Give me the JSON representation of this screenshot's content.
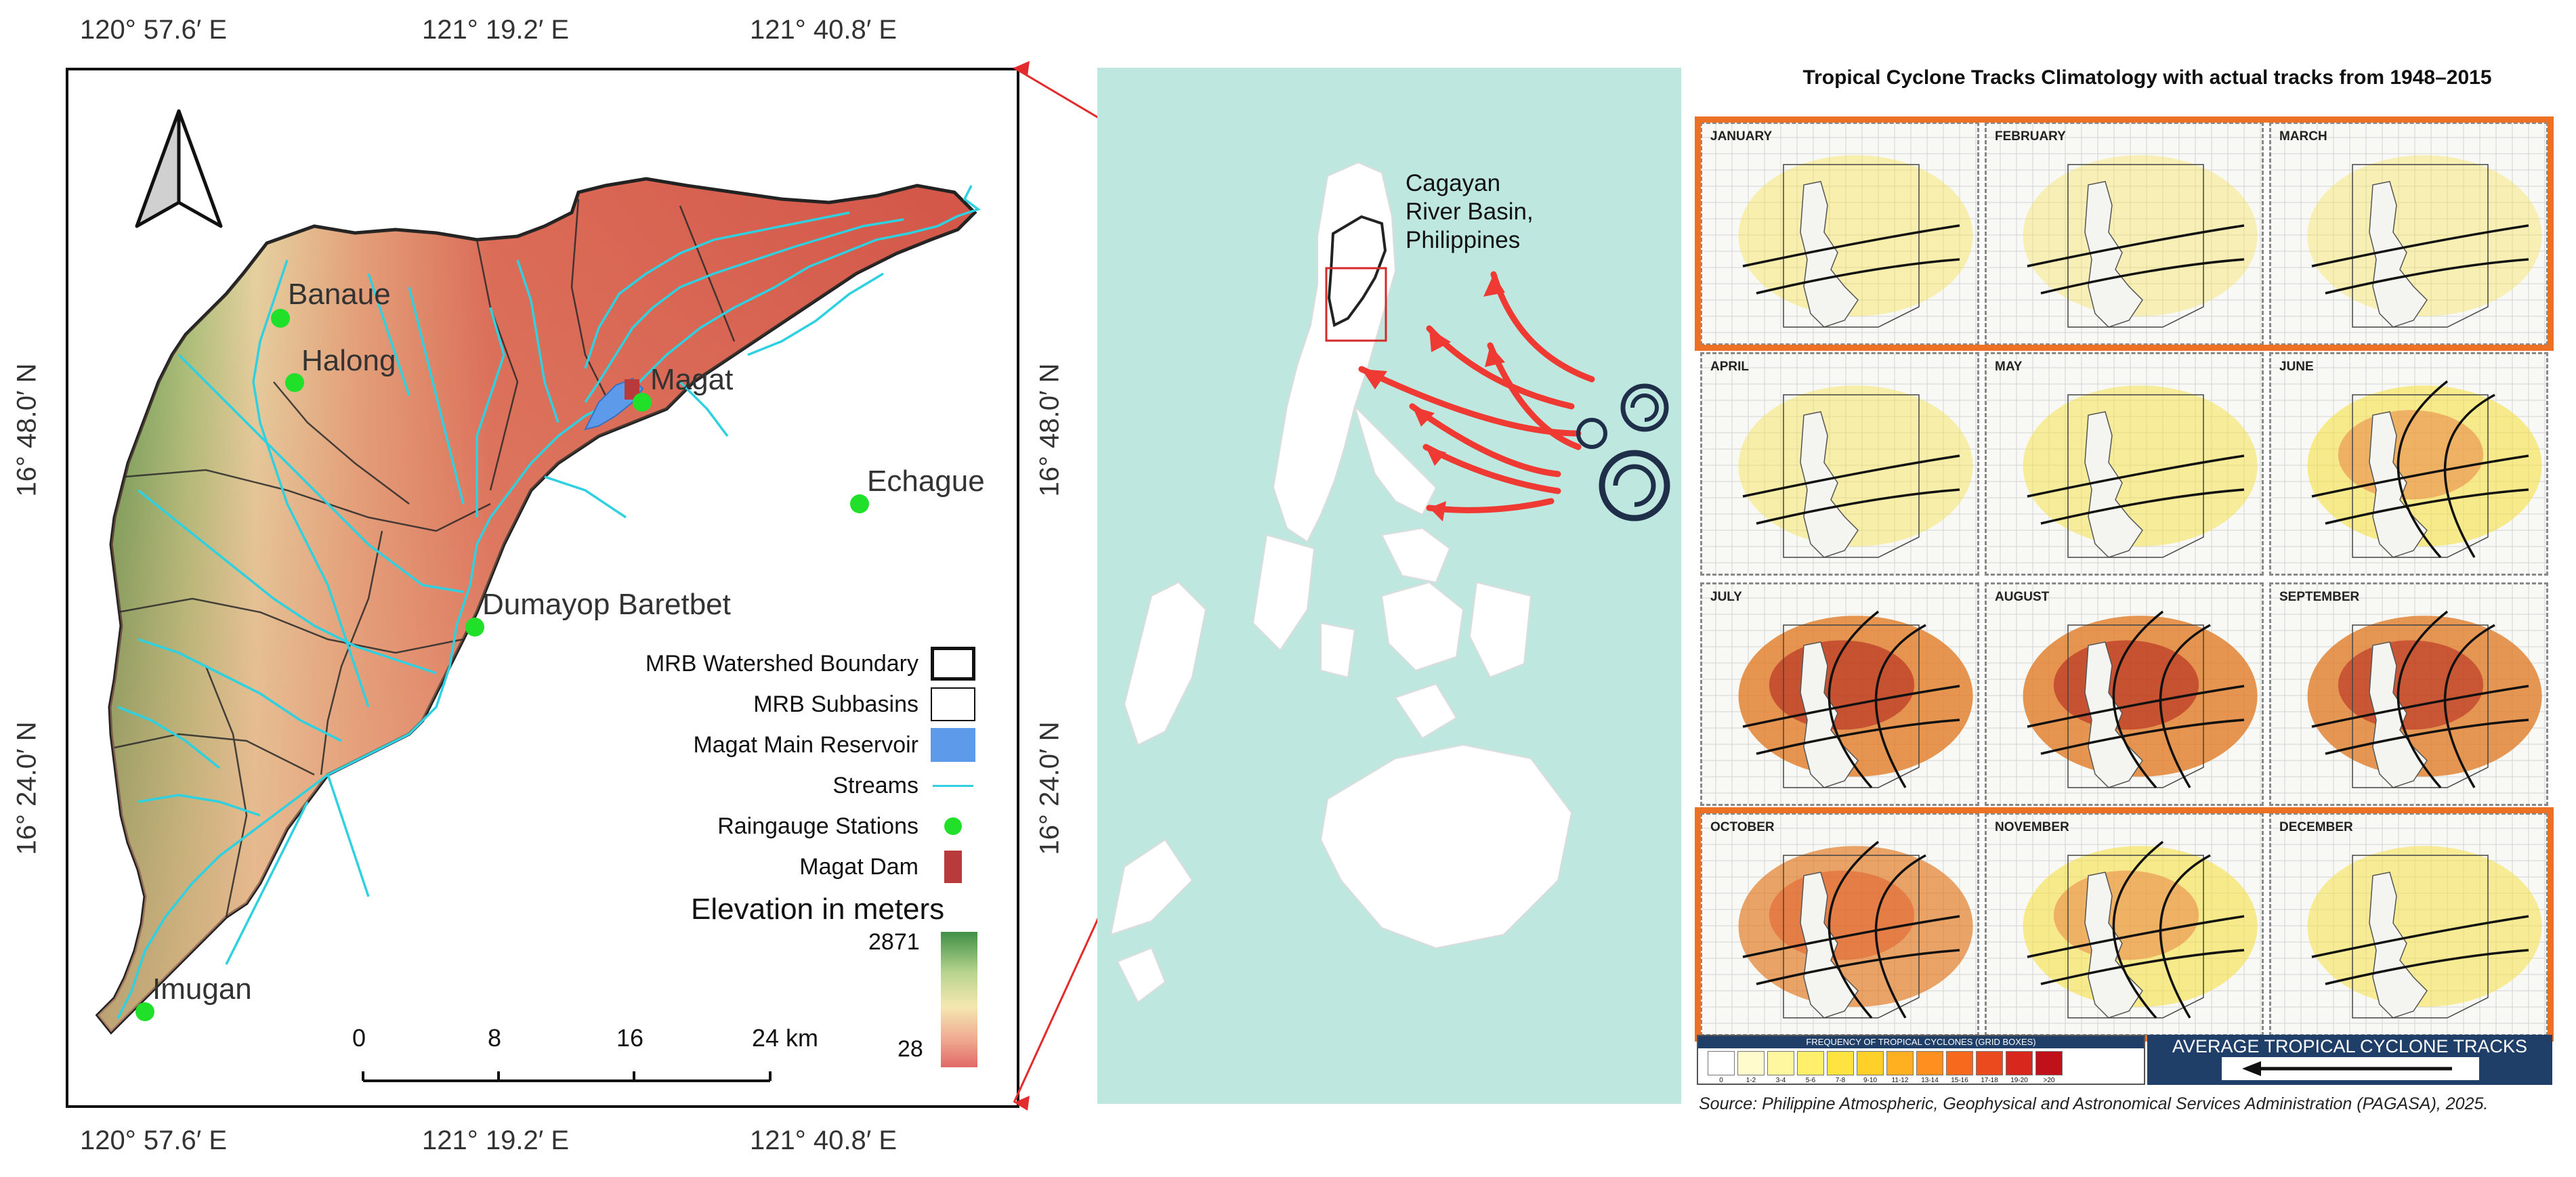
{
  "main_map": {
    "top_coords": [
      "120° 57.6′ E",
      "121° 19.2′ E",
      "121° 40.8′ E"
    ],
    "bottom_coords": [
      "120° 57.6′ E",
      "121° 19.2′ E",
      "121° 40.8′ E"
    ],
    "left_coords": [
      "16° 48.0′ N",
      "16° 24.0′ N"
    ],
    "right_coords": [
      "16° 48.0′ N",
      "16° 24.0′ N"
    ],
    "north_arrow_icon": "north-arrow-icon",
    "stations": [
      {
        "name": "Banaue"
      },
      {
        "name": "Halong"
      },
      {
        "name": "Magat"
      },
      {
        "name": "Echague"
      },
      {
        "name": "Dumayop Baretbet"
      },
      {
        "name": "Imugan"
      }
    ],
    "legend": {
      "watershed": "MRB Watershed Boundary",
      "subbasins": "MRB Subbasins",
      "reservoir": "Magat Main Reservoir",
      "streams": "Streams",
      "raingauge": "Raingauge Stations",
      "dam": "Magat Dam",
      "elevation_title": "Elevation in meters",
      "elevation_max": "2871",
      "elevation_min": "28"
    },
    "scale": {
      "ticks": [
        "0",
        "8",
        "16",
        "24 km"
      ]
    },
    "colors": {
      "stream": "#2fd0e0",
      "station": "#21e02a",
      "reservoir": "#5d9ae9",
      "dam": "#b83a3a",
      "lowland": "#d9574f",
      "highland": "#4e9b4a"
    }
  },
  "inset": {
    "basin_label": [
      "Cagayan",
      "River Basin,",
      "Philippines"
    ],
    "sea_color": "#bee7df",
    "arrow_color": "#ee3a32",
    "cyclone_icon": "cyclone-icon"
  },
  "climatology": {
    "title": "Tropical Cyclone Tracks Climatology with actual tracks from 1948–2015",
    "months": [
      "JANUARY",
      "FEBRUARY",
      "MARCH",
      "APRIL",
      "MAY",
      "JUNE",
      "JULY",
      "AUGUST",
      "SEPTEMBER",
      "OCTOBER",
      "NOVEMBER",
      "DECEMBER"
    ],
    "intensity": [
      0.25,
      0.18,
      0.2,
      0.3,
      0.45,
      0.6,
      0.95,
      0.95,
      0.9,
      0.75,
      0.6,
      0.5
    ],
    "frequency_title": "FREQUENCY OF TROPICAL CYCLONES (GRID BOXES)",
    "frequency_bins": [
      "0",
      "1-2",
      "3-4",
      "5-6",
      "7-8",
      "9-10",
      "11-12",
      "13-14",
      "15-16",
      "17-18",
      "19-20",
      ">20"
    ],
    "frequency_colors": [
      "#ffffff",
      "#fffbcc",
      "#fff7a0",
      "#ffef6a",
      "#ffe340",
      "#ffd02a",
      "#ffb020",
      "#ff9020",
      "#f76a1e",
      "#ea4a1e",
      "#d8281e",
      "#c0101a"
    ],
    "average_title": "AVERAGE TROPICAL CYCLONE TRACKS",
    "source": "Source: Philippine Atmospheric, Geophysical and Astronomical Services Administration (PAGASA), 2025."
  }
}
